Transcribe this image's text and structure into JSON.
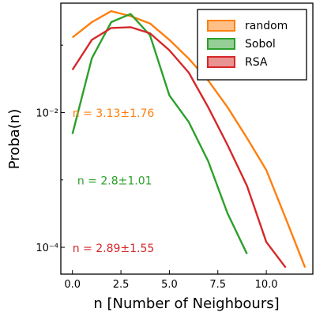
{
  "chart_data": {
    "type": "line",
    "xlabel": "n [Number of Neighbours]",
    "ylabel": "Proba(n)",
    "yscale": "log",
    "xlim": [
      -0.6,
      12.4
    ],
    "ylim": [
      4e-05,
      0.42
    ],
    "x_ticks": [
      0.0,
      2.5,
      5.0,
      7.5,
      10.0
    ],
    "x_tick_labels": [
      "0.0",
      "2.5",
      "5.0",
      "7.5",
      "10.0"
    ],
    "y_ticks": [
      0.0001,
      0.01
    ],
    "y_tick_labels": [
      "10⁻⁴",
      "10⁻²"
    ],
    "grid": false,
    "legend_position": "top-right",
    "series": [
      {
        "name": "random",
        "color": "#ff7f0e",
        "x": [
          0,
          1,
          2,
          3,
          4,
          5,
          6,
          7,
          8,
          9,
          10,
          11,
          12
        ],
        "y": [
          0.13,
          0.22,
          0.32,
          0.27,
          0.21,
          0.12,
          0.063,
          0.03,
          0.012,
          0.0042,
          0.0014,
          0.00027,
          5e-05
        ]
      },
      {
        "name": "Sobol",
        "color": "#2ca02c",
        "x": [
          0,
          1,
          2,
          3,
          4,
          5,
          6,
          7,
          8,
          9
        ],
        "y": [
          0.0048,
          0.064,
          0.22,
          0.29,
          0.14,
          0.018,
          0.0072,
          0.0019,
          0.00032,
          8e-05
        ]
      },
      {
        "name": "RSA",
        "color": "#d62728",
        "x": [
          0,
          1,
          2,
          3,
          4,
          5,
          6,
          7,
          8,
          9,
          10,
          11
        ],
        "y": [
          0.043,
          0.12,
          0.18,
          0.185,
          0.15,
          0.084,
          0.039,
          0.012,
          0.0033,
          0.00082,
          0.00012,
          5e-05
        ]
      }
    ],
    "annotations": [
      {
        "text": "n = 3.13±1.76",
        "color": "#ff7f0e",
        "x": 0.0,
        "y": 0.0098
      },
      {
        "text": "n = 2.8±1.01",
        "color": "#2ca02c",
        "x": 0.25,
        "y": 0.00098
      },
      {
        "text": "n = 2.89±1.55",
        "color": "#d62728",
        "x": 0.0,
        "y": 9.8e-05
      }
    ]
  }
}
